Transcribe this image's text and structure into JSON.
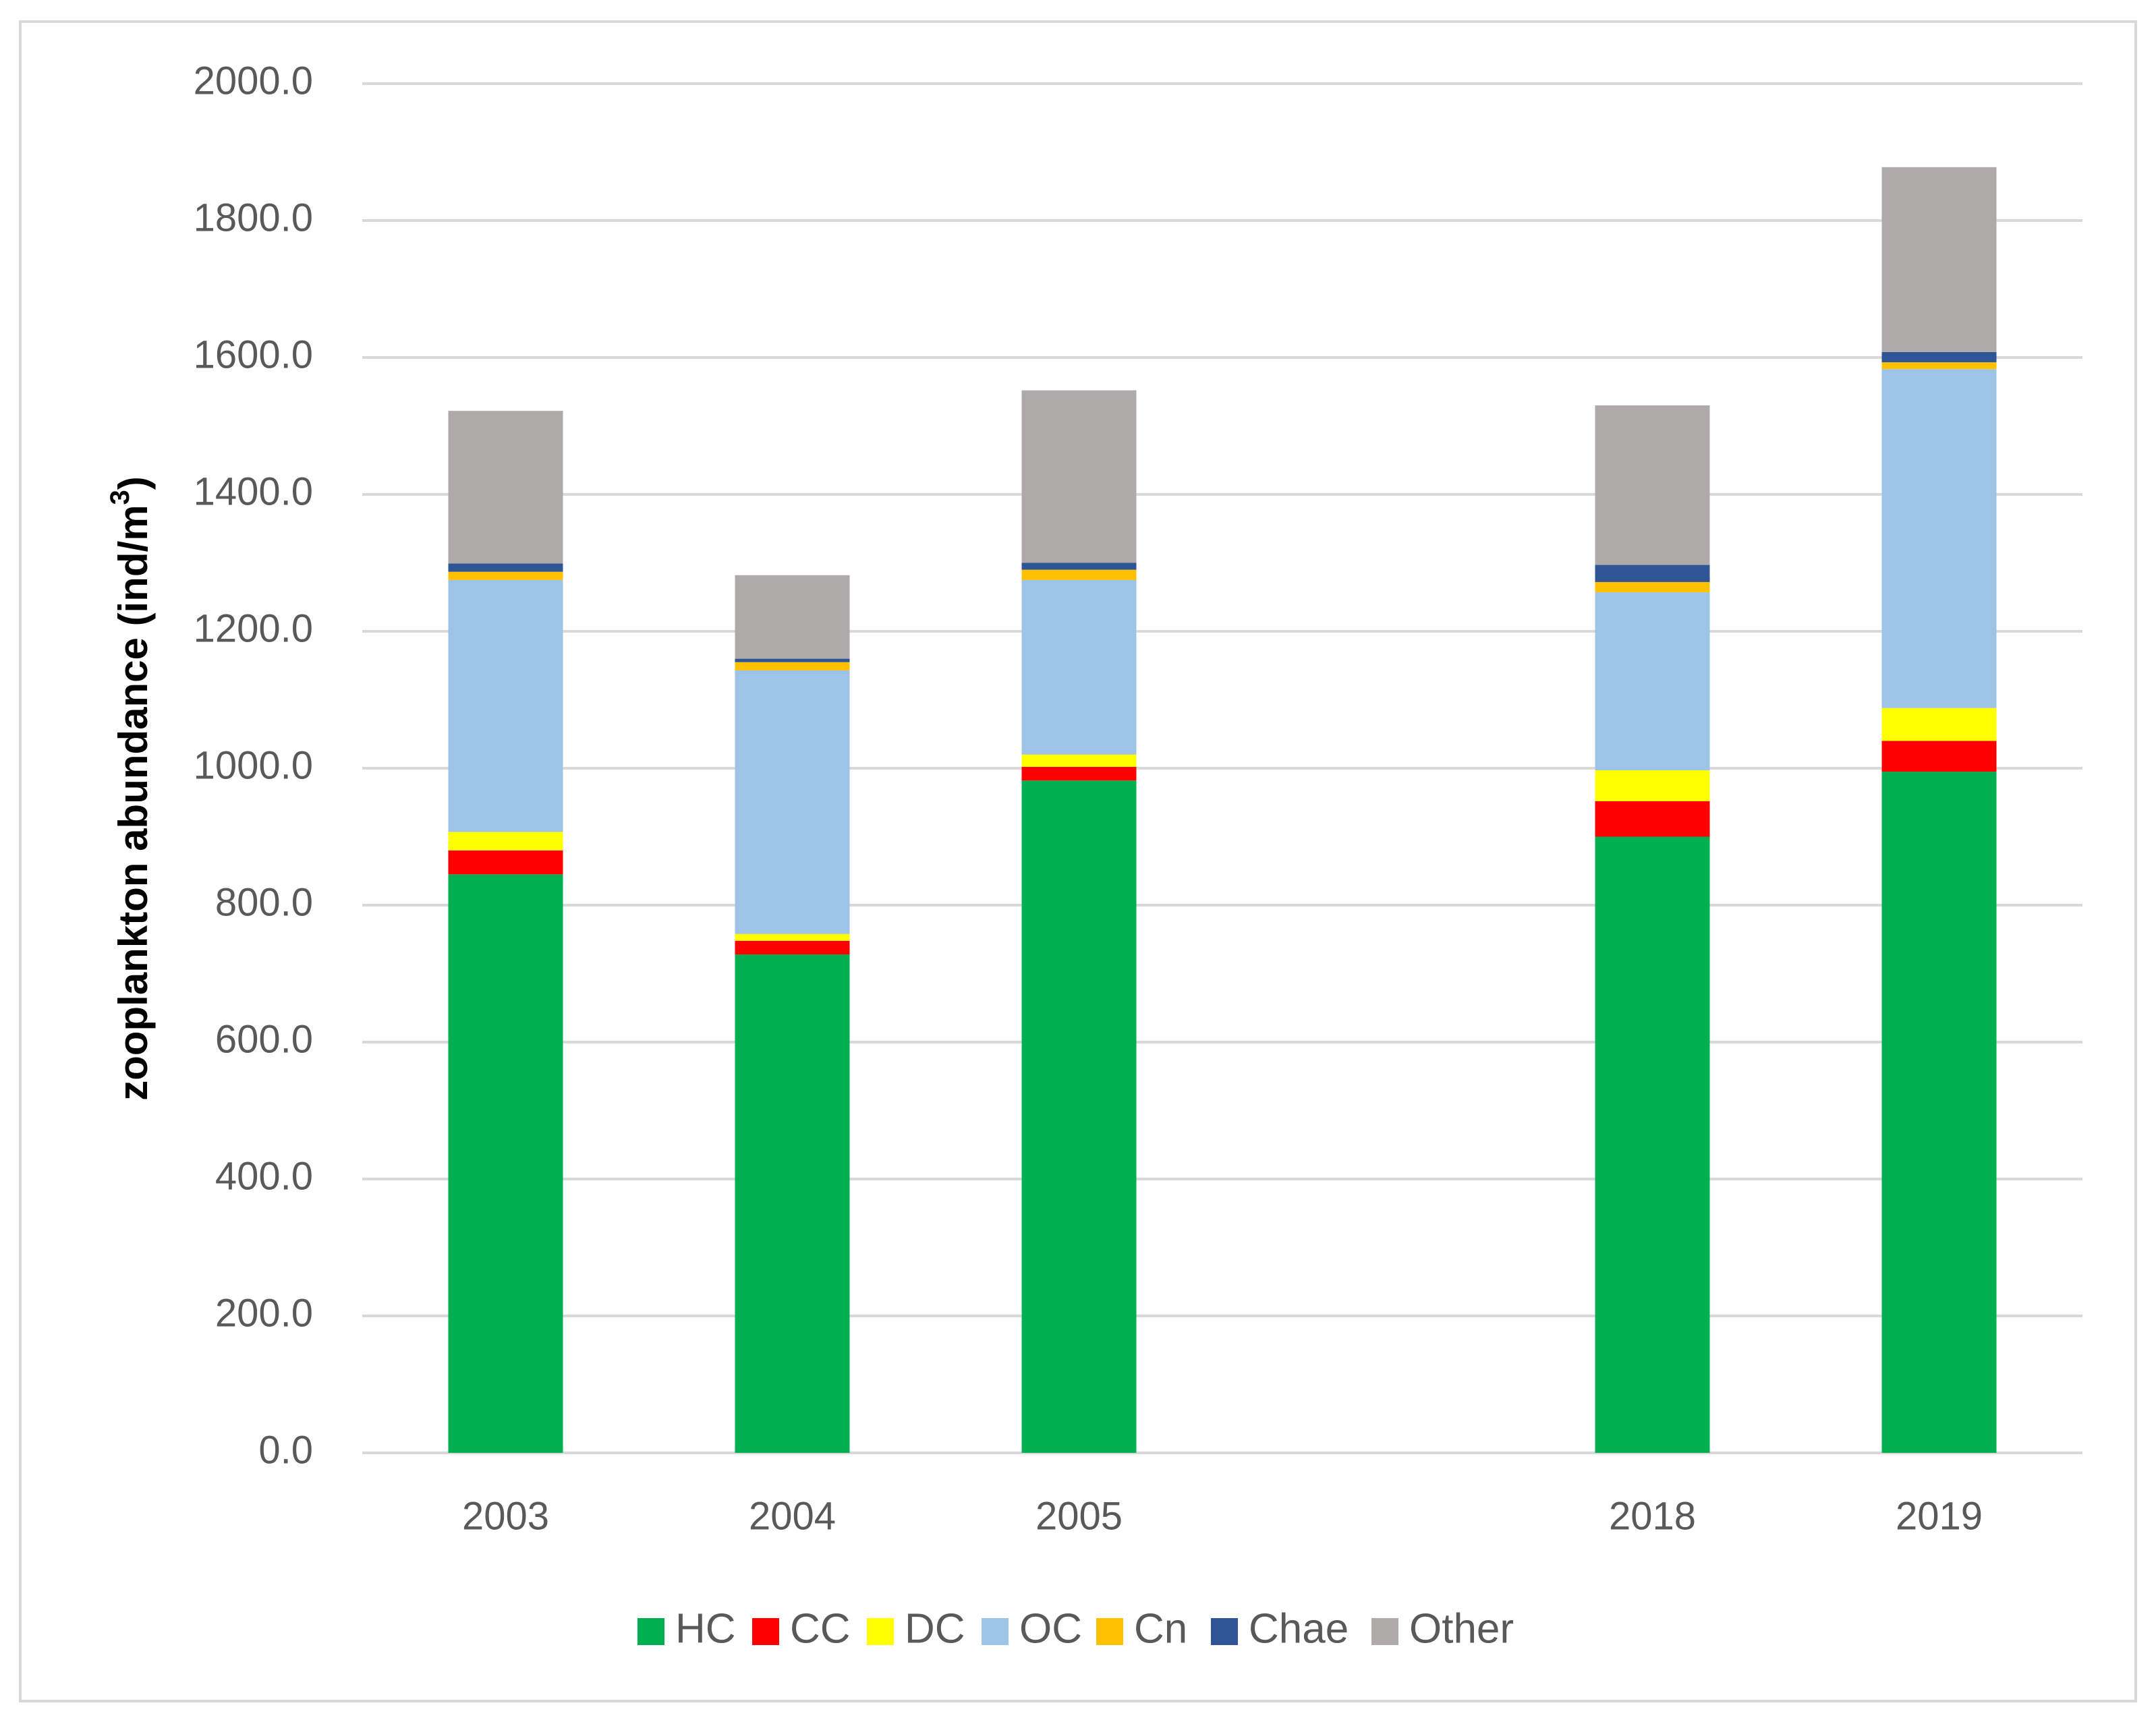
{
  "chart_data": {
    "type": "bar",
    "stacked": true,
    "title": "",
    "xlabel": "",
    "ylabel": "zooplankton abundance (ind/m",
    "ylabel_superscript": "3",
    "ylabel_suffix": ")",
    "ylim": [
      0,
      2000
    ],
    "ytick_step": 200,
    "ytick_labels": [
      "0.0",
      "200.0",
      "400.0",
      "600.0",
      "800.0",
      "1000.0",
      "1200.0",
      "1400.0",
      "1600.0",
      "1800.0",
      "2000.0"
    ],
    "grid": true,
    "legend_position": "bottom",
    "category_slots": [
      0,
      1,
      2,
      4,
      5
    ],
    "slot_count": 6,
    "categories": [
      "2003",
      "2004",
      "2005",
      "2018",
      "2019"
    ],
    "series": [
      {
        "name": "HC",
        "color": "#00b050",
        "values": [
          845,
          728,
          982,
          900,
          995
        ]
      },
      {
        "name": "CC",
        "color": "#ff0000",
        "values": [
          35,
          20,
          20,
          52,
          45
        ]
      },
      {
        "name": "DC",
        "color": "#ffff00",
        "values": [
          27,
          10,
          18,
          45,
          48
        ]
      },
      {
        "name": "OC",
        "color": "#9dc3e6",
        "values": [
          368,
          385,
          255,
          260,
          495
        ]
      },
      {
        "name": "Cn",
        "color": "#ffc000",
        "values": [
          12,
          12,
          15,
          15,
          10
        ]
      },
      {
        "name": "Chae",
        "color": "#2f5597",
        "values": [
          12,
          5,
          10,
          25,
          15
        ]
      },
      {
        "name": "Other",
        "color": "#aeaaaa",
        "values": [
          223,
          122,
          252,
          233,
          270
        ]
      }
    ]
  }
}
